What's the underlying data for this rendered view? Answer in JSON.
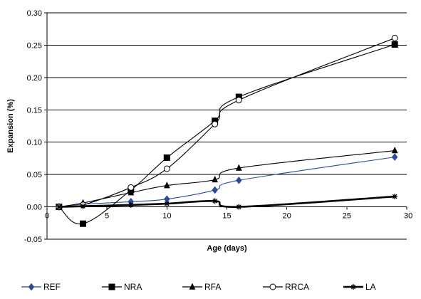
{
  "chart_data": {
    "type": "line",
    "title": "",
    "xlabel": "Age (days)",
    "ylabel": "Expansion (%)",
    "xlim": [
      0,
      30
    ],
    "ylim": [
      -0.05,
      0.3
    ],
    "xticks": [
      0,
      5,
      10,
      15,
      20,
      25,
      30
    ],
    "yticks": [
      -0.05,
      0.0,
      0.05,
      0.1,
      0.15,
      0.2,
      0.25,
      0.3
    ],
    "xtick_labels": [
      "0",
      "5",
      "10",
      "15",
      "20",
      "25",
      "30"
    ],
    "ytick_labels": [
      "-0.05",
      "0.00",
      "0.05",
      "0.10",
      "0.15",
      "0.20",
      "0.25",
      "0.30"
    ],
    "grid": "horizontal",
    "legend_position": "bottom",
    "series": [
      {
        "name": "REF",
        "marker": "diamond",
        "color": "#2c4a9a",
        "x": [
          1,
          3,
          7,
          10,
          14,
          16,
          29
        ],
        "y": [
          0.0,
          0.004,
          0.008,
          0.012,
          0.026,
          0.041,
          0.077
        ]
      },
      {
        "name": "NRA",
        "marker": "square",
        "color": "#000000",
        "x": [
          1,
          3,
          7,
          10,
          14,
          16,
          29
        ],
        "y": [
          0.0,
          -0.026,
          0.026,
          0.076,
          0.133,
          0.17,
          0.251
        ]
      },
      {
        "name": "RFA",
        "marker": "triangle",
        "color": "#000000",
        "x": [
          1,
          3,
          7,
          10,
          14,
          16,
          29
        ],
        "y": [
          0.0,
          0.006,
          0.022,
          0.033,
          0.042,
          0.06,
          0.087
        ]
      },
      {
        "name": "RRCA",
        "marker": "circle-open",
        "color": "#000000",
        "x": [
          1,
          3,
          7,
          10,
          14,
          16,
          29
        ],
        "y": [
          0.0,
          0.003,
          0.03,
          0.059,
          0.128,
          0.165,
          0.261
        ]
      },
      {
        "name": "LA",
        "marker": "star",
        "color": "#000000",
        "bold": true,
        "x": [
          1,
          3,
          7,
          10,
          14,
          16,
          29
        ],
        "y": [
          0.0,
          0.001,
          0.003,
          0.005,
          0.009,
          0.0,
          0.016
        ]
      }
    ]
  }
}
